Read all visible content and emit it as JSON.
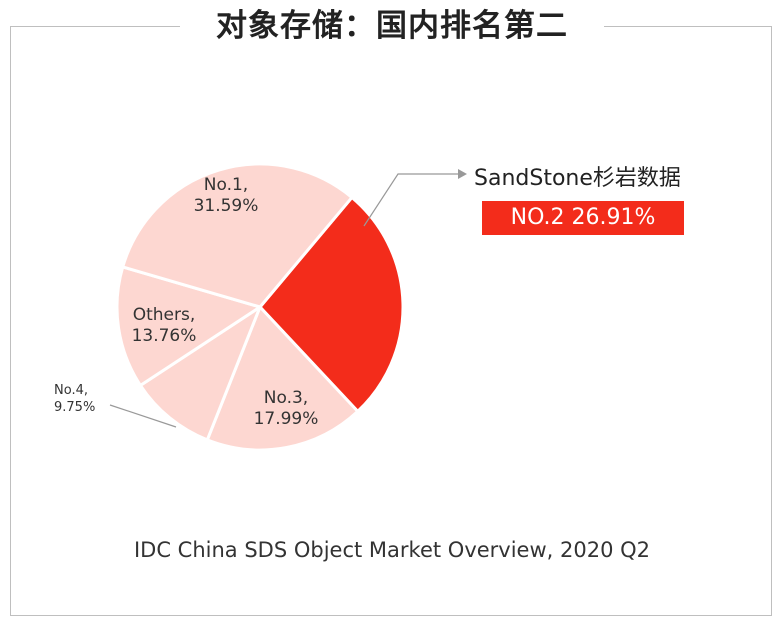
{
  "title": "对象存储：国内排名第二",
  "source": "IDC China SDS Object Market Overview, 2020 Q2",
  "callout": {
    "name": "SandStone杉岩数据",
    "badge": "NO.2  26.91%"
  },
  "colors": {
    "highlight": "#f32c1b",
    "other": "#fdd7d1",
    "separator": "#ffffff",
    "leader": "#999999"
  },
  "chart_data": {
    "type": "pie",
    "title": "对象存储：国内排名第二",
    "slices": [
      {
        "label_line1": "",
        "label_line2": "",
        "value": 26.91,
        "highlight": true
      },
      {
        "label_line1": "No.3,",
        "label_line2": "17.99%",
        "value": 17.99,
        "highlight": false
      },
      {
        "label_line1": "No.4,",
        "label_line2": "9.75%",
        "value": 9.75,
        "highlight": false
      },
      {
        "label_line1": "Others,",
        "label_line2": "13.76%",
        "value": 13.76,
        "highlight": false
      },
      {
        "label_line1": "No.1,",
        "label_line2": "31.59%",
        "value": 31.59,
        "highlight": false
      }
    ]
  }
}
